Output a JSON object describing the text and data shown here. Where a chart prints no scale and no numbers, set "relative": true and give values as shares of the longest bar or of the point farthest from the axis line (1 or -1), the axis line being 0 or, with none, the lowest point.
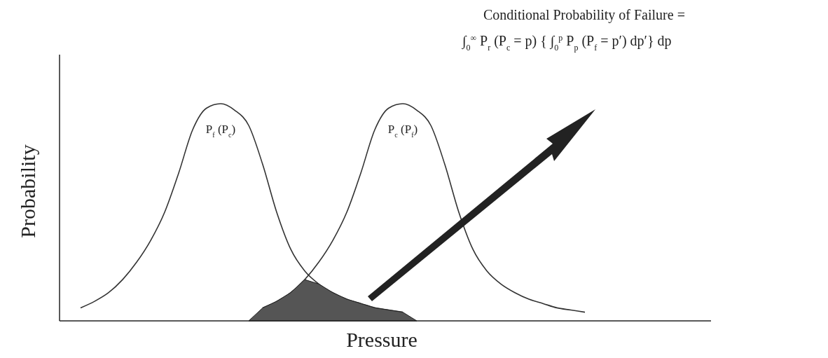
{
  "chart_data": {
    "type": "line",
    "relative": true,
    "xlabel": "Pressure",
    "ylabel": "Probability",
    "annotations": [
      "Conditional Probability of Failure =",
      "∫$_{0}$$^{∞}$ P$_{r}$  (P$_{c}$  = p) { ∫$_{0}$$^{p}$ P$_{p}$ (P$_{f}$  = p′) dp′} dp"
    ],
    "categories": [
      null,
      null,
      null,
      null,
      null,
      null,
      null,
      null,
      null,
      null,
      null,
      null,
      null,
      null,
      null,
      null,
      null,
      null,
      null,
      null,
      null,
      null,
      null,
      null,
      null,
      null,
      null,
      null,
      null,
      null,
      null,
      null,
      null,
      null,
      null,
      null,
      null,
      null,
      null,
      null,
      null,
      null,
      null,
      null,
      null,
      null
    ],
    "series": [
      {
        "name": "P$_{f}$ (P$_{c}$)",
        "color": "#333333",
        "values": [
          null,
          0.06,
          0.09,
          0.13,
          0.19,
          0.27,
          0.37,
          0.5,
          0.68,
          0.88,
          0.98,
          1.0,
          0.97,
          0.9,
          0.72,
          0.5,
          0.33,
          0.23,
          0.17,
          0.13,
          0.1,
          0.08,
          0.06,
          0.05,
          0.04,
          null,
          null,
          null,
          null,
          null,
          null,
          null,
          null,
          null,
          null,
          null,
          null,
          null,
          null,
          null,
          null,
          null,
          null,
          null,
          null,
          null
        ]
      },
      {
        "name": "P$_{c}$ (P$_{f}$)",
        "color": "#333333",
        "values": [
          null,
          null,
          null,
          null,
          null,
          null,
          null,
          null,
          null,
          null,
          null,
          null,
          null,
          null,
          0.06,
          0.09,
          0.13,
          0.19,
          0.27,
          0.37,
          0.5,
          0.68,
          0.88,
          0.98,
          1.0,
          0.97,
          0.9,
          0.72,
          0.5,
          0.33,
          0.23,
          0.17,
          0.13,
          0.1,
          0.08,
          0.06,
          0.05,
          0.04,
          null,
          null,
          null,
          null,
          null,
          null,
          null,
          null
        ]
      },
      {
        "type": "area",
        "color": "#555555",
        "values": [
          null,
          null,
          null,
          null,
          null,
          null,
          null,
          null,
          null,
          null,
          null,
          null,
          null,
          0,
          0.06,
          0.09,
          0.13,
          0.19,
          0.17,
          0.13,
          0.1,
          0.08,
          0.06,
          0.05,
          0.04,
          0,
          null,
          null,
          null,
          null,
          null,
          null,
          null,
          null,
          null,
          null,
          null,
          null,
          null,
          null,
          null,
          null,
          null,
          null,
          null,
          null
        ]
      }
    ]
  }
}
